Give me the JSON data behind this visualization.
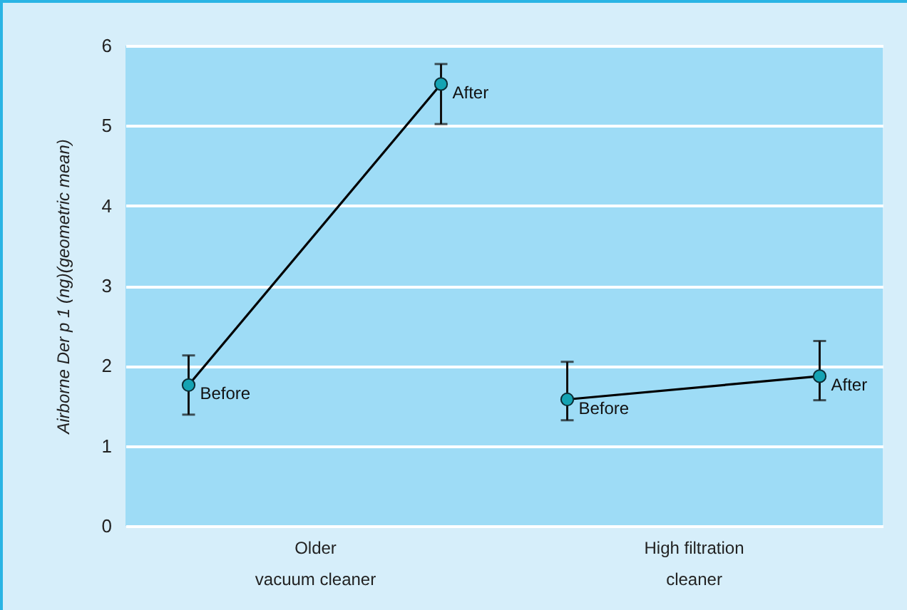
{
  "chart_data": {
    "type": "line",
    "ylabel": "Airborne Der p 1 (ng)(geometric mean)",
    "categories": [
      null,
      "Older\nvacuum cleaner",
      null,
      null,
      "High filtration\ncleaner",
      null
    ],
    "ylim": [
      0,
      6
    ],
    "yticks": [
      0,
      1,
      2,
      3,
      4,
      5,
      6
    ],
    "grid": "y",
    "marker": "circle",
    "line_style": "solid",
    "series": [
      {
        "color": "#14a3b3",
        "values": [
          1.76,
          null,
          5.52,
          null,
          null,
          null
        ],
        "errors": [
          [
            1.39,
            2.13
          ],
          null,
          [
            5.02,
            5.77
          ],
          null,
          null,
          null
        ]
      },
      {
        "color": "#14a3b3",
        "values": [
          null,
          null,
          null,
          1.58,
          null,
          1.87
        ],
        "errors": [
          null,
          null,
          null,
          [
            1.32,
            2.05
          ],
          null,
          [
            1.57,
            2.31
          ]
        ]
      }
    ],
    "annotations": [
      "Before",
      "After",
      "Before",
      "After"
    ]
  }
}
